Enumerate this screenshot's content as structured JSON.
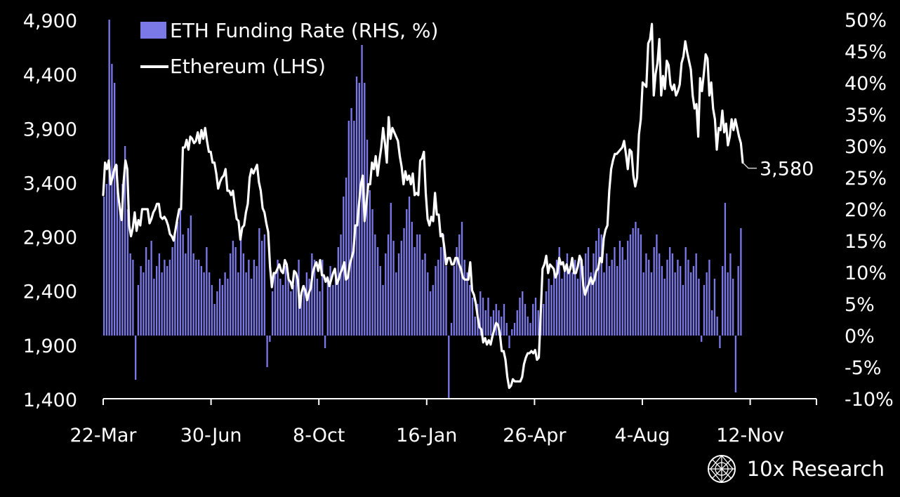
{
  "chart_data": {
    "type": "bar+line",
    "x_ticks": [
      "22-Mar",
      "30-Jun",
      "8-Oct",
      "16-Jan",
      "26-Apr",
      "4-Aug",
      "12-Nov"
    ],
    "y_left_ticks": [
      "4,900",
      "4,400",
      "3,900",
      "3,400",
      "2,900",
      "2,400",
      "1,900",
      "1,400"
    ],
    "y_left_range": [
      1400,
      4900
    ],
    "y_right_ticks": [
      "50%",
      "45%",
      "40%",
      "35%",
      "30%",
      "25%",
      "20%",
      "15%",
      "10%",
      "5%",
      "0%",
      "-5%",
      "-10%"
    ],
    "y_right_range": [
      -10,
      50
    ],
    "last_value_label": "3,580",
    "series": [
      {
        "name": "ETH Funding Rate (RHS, %)",
        "kind": "bar",
        "axis": "right",
        "color": "#7b78e8",
        "values": [
          22,
          24,
          50,
          43,
          40,
          27,
          21,
          24,
          30,
          20,
          13,
          12,
          -7,
          8,
          11,
          10,
          14,
          12,
          15,
          9,
          11,
          13,
          10,
          12,
          11,
          12,
          14,
          16,
          18,
          20,
          16,
          13,
          17,
          19,
          13,
          12,
          12,
          11,
          10,
          14,
          10,
          8,
          5,
          7,
          9,
          8,
          10,
          9,
          13,
          15,
          14,
          10,
          16,
          13,
          10,
          12,
          9,
          12,
          11,
          17,
          15,
          16,
          -5,
          -1,
          7,
          10,
          12,
          9,
          8,
          11,
          10,
          7,
          8,
          10,
          12,
          6,
          8,
          10,
          9,
          13,
          12,
          9,
          7,
          12,
          -2,
          9,
          11,
          8,
          10,
          14,
          16,
          22,
          25,
          34,
          36,
          34,
          41,
          40,
          46,
          40,
          31,
          23,
          20,
          16,
          14,
          11,
          8,
          13,
          16,
          21,
          15,
          10,
          13,
          15,
          17,
          20,
          22,
          18,
          14,
          16,
          16,
          12,
          13,
          10,
          7,
          8,
          11,
          12,
          14,
          16,
          11,
          -10,
          2,
          11,
          14,
          16,
          18,
          12,
          10,
          8,
          6,
          3,
          5,
          7,
          6,
          4,
          6,
          3,
          4,
          5,
          4,
          3,
          5,
          2,
          -2,
          1,
          2,
          4,
          6,
          7,
          5,
          3,
          2,
          5,
          6,
          4,
          3,
          5,
          7,
          9,
          8,
          10,
          12,
          14,
          9,
          11,
          13,
          11,
          10,
          12,
          9,
          12,
          11,
          13,
          14,
          10,
          13,
          15,
          17,
          16,
          10,
          13,
          11,
          12,
          14,
          11,
          15,
          14,
          12,
          15,
          16,
          17,
          18,
          17,
          16,
          10,
          13,
          12,
          10,
          14,
          16,
          13,
          11,
          9,
          12,
          14,
          13,
          10,
          12,
          11,
          8,
          14,
          12,
          10,
          11,
          13,
          9,
          -1,
          8,
          10,
          12,
          4,
          9,
          3,
          -2,
          11,
          21,
          10,
          13,
          9,
          -9,
          11,
          17
        ],
        "categories_note": ""
      },
      {
        "name": "Ethereum (LHS)",
        "kind": "line",
        "axis": "left",
        "color": "#ffffff",
        "values": [
          3280,
          3580,
          3520,
          3600,
          3380,
          3440,
          3520,
          3560,
          3300,
          3150,
          3050,
          3400,
          3600,
          3520,
          3000,
          2900,
          2980,
          3120,
          2950,
          3050,
          3000,
          3150,
          3150,
          3150,
          3150,
          3020,
          3060,
          3120,
          3150,
          3200,
          3200,
          3080,
          3060,
          3080,
          3050,
          3000,
          2920,
          2900,
          2860,
          2960,
          3060,
          3150,
          3150,
          3720,
          3720,
          3790,
          3700,
          3820,
          3800,
          3760,
          3780,
          3860,
          3760,
          3880,
          3800,
          3900,
          3780,
          3680,
          3680,
          3580,
          3580,
          3480,
          3340,
          3400,
          3440,
          3460,
          3520,
          3320,
          3320,
          3280,
          3320,
          3180,
          3060,
          3040,
          2870,
          2980,
          3000,
          3120,
          3200,
          3440,
          3520,
          3480,
          3520,
          3560,
          3400,
          3320,
          3160,
          3120,
          3020,
          2940,
          2620,
          2430,
          2560,
          2560,
          2600,
          2640,
          2580,
          2560,
          2680,
          2640,
          2500,
          2480,
          2420,
          2580,
          2560,
          2500,
          2240,
          2380,
          2440,
          2400,
          2310,
          2380,
          2420,
          2560,
          2620,
          2660,
          2580,
          2680,
          2540,
          2540,
          2480,
          2520,
          2440,
          2500,
          2560,
          2600,
          2460,
          2500,
          2560,
          2600,
          2660,
          2500,
          2520,
          2640,
          2700,
          2760,
          3000,
          3000,
          3200,
          3380,
          3460,
          3040,
          3200,
          3380,
          3380,
          3580,
          3520,
          3640,
          3460,
          3600,
          3720,
          3900,
          3760,
          3580,
          4000,
          3800,
          3900,
          3860,
          3820,
          3780,
          3640,
          3540,
          3380,
          3500,
          3420,
          3460,
          3380,
          3480,
          3280,
          3300,
          3280,
          3600,
          3620,
          3680,
          3300,
          3060,
          3000,
          3080,
          3040,
          3300,
          3100,
          3100,
          2900,
          2920,
          2800,
          2640,
          2700,
          2700,
          2640,
          2640,
          2700,
          2700,
          2640,
          2600,
          2520,
          2500,
          2500,
          2500,
          2660,
          2400,
          2360,
          2280,
          2160,
          2060,
          2040,
          1920,
          1960,
          1900,
          1940,
          1900,
          1980,
          2040,
          2100,
          2080,
          2000,
          1840,
          1840,
          1760,
          1600,
          1500,
          1520,
          1580,
          1560,
          1560,
          1560,
          1560,
          1600,
          1720,
          1780,
          1820,
          1820,
          1840,
          1820,
          1850,
          1760,
          1780,
          2180,
          2600,
          2640,
          2720,
          2560,
          2640,
          2620,
          2600,
          2520,
          2560,
          2700,
          2640,
          2660,
          2580,
          2640,
          2560,
          2600,
          2700,
          2560,
          2560,
          2620,
          2720,
          2680,
          2440,
          2360,
          2420,
          2460,
          2520,
          2460,
          2500,
          2580,
          2600,
          2700,
          2660,
          2880,
          2960,
          3000,
          3320,
          3520,
          3600,
          3660,
          3660,
          3680,
          3700,
          3720,
          3780,
          3660,
          3520,
          3700,
          3680,
          3460,
          3360,
          3440,
          3840,
          3980,
          4320,
          4300,
          4280,
          4680,
          4720,
          4860,
          4200,
          4400,
          4500,
          4720,
          4200,
          4380,
          4260,
          4520,
          4480,
          4300,
          4250,
          4300,
          4200,
          4240,
          4300,
          4500,
          4560,
          4700,
          4600,
          4520,
          4440,
          4200,
          4080,
          4120,
          3820,
          4360,
          4240,
          4400,
          4580,
          4540,
          4200,
          4320,
          4080,
          3980,
          3700,
          3900,
          3880,
          4060,
          3860,
          3940,
          3740,
          3820,
          3980,
          3880,
          3980,
          3900,
          3820,
          3760,
          3580
        ]
      }
    ],
    "legend_position": "top-left",
    "grid": false
  },
  "branding": {
    "logo_icon": "globe-network-icon",
    "text": "10x Research"
  }
}
